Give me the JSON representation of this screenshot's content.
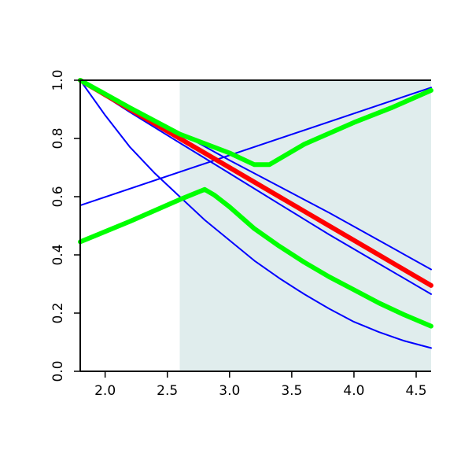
{
  "chart_data": {
    "type": "line",
    "title": "",
    "xlabel": "",
    "ylabel": "",
    "xlim": [
      1.8,
      4.62
    ],
    "ylim": [
      0.0,
      1.0
    ],
    "x_ticks": [
      2.0,
      2.5,
      3.0,
      3.5,
      4.0,
      4.5
    ],
    "x_tick_labels": [
      "2.0",
      "2.5",
      "3.0",
      "3.5",
      "4.0",
      "4.5"
    ],
    "y_ticks": [
      0.0,
      0.2,
      0.4,
      0.6,
      0.8,
      1.0
    ],
    "y_tick_labels": [
      "0.0",
      "0.2",
      "0.4",
      "0.6",
      "0.8",
      "1.0"
    ],
    "shaded_region": {
      "x": [
        2.6,
        4.62
      ],
      "color": "#e0eded"
    },
    "grid": false,
    "legend": "none",
    "series": [
      {
        "color": "#0000ff",
        "width": "thin",
        "x": [
          1.8,
          4.62
        ],
        "y": [
          0.57,
          0.975
        ]
      },
      {
        "color": "#0000ff",
        "width": "thin",
        "x": [
          1.8,
          2.2,
          2.6,
          3.0,
          3.4,
          3.8,
          4.2,
          4.62
        ],
        "y": [
          1.0,
          0.91,
          0.82,
          0.725,
          0.635,
          0.545,
          0.45,
          0.35
        ]
      },
      {
        "color": "#0000ff",
        "width": "thin",
        "x": [
          1.8,
          2.2,
          2.6,
          3.0,
          3.4,
          3.8,
          4.2,
          4.62
        ],
        "y": [
          1.0,
          0.89,
          0.785,
          0.68,
          0.575,
          0.47,
          0.37,
          0.265
        ]
      },
      {
        "color": "#0000ff",
        "width": "thin",
        "x": [
          1.8,
          2.0,
          2.2,
          2.4,
          2.6,
          2.8,
          3.0,
          3.2,
          3.4,
          3.6,
          3.8,
          4.0,
          4.2,
          4.4,
          4.62
        ],
        "y": [
          1.0,
          0.88,
          0.77,
          0.68,
          0.6,
          0.52,
          0.45,
          0.38,
          0.32,
          0.265,
          0.215,
          0.17,
          0.135,
          0.105,
          0.08
        ]
      },
      {
        "color": "#ff0000",
        "width": "thick",
        "x": [
          1.8,
          2.2,
          2.6,
          3.0,
          3.4,
          3.8,
          4.2,
          4.62
        ],
        "y": [
          1.0,
          0.9,
          0.8,
          0.7,
          0.6,
          0.5,
          0.4,
          0.295
        ]
      },
      {
        "color": "#00ff00",
        "width": "thick",
        "x": [
          1.8,
          2.2,
          2.6,
          3.0,
          3.2,
          3.32,
          3.6,
          4.0,
          4.3,
          4.62
        ],
        "y": [
          1.0,
          0.905,
          0.815,
          0.75,
          0.71,
          0.71,
          0.78,
          0.855,
          0.905,
          0.965
        ]
      },
      {
        "color": "#00ff00",
        "width": "thick",
        "x": [
          1.8,
          2.2,
          2.6,
          2.8,
          2.88,
          3.0,
          3.2,
          3.4,
          3.6,
          3.8,
          4.0,
          4.2,
          4.4,
          4.62
        ],
        "y": [
          0.445,
          0.515,
          0.59,
          0.625,
          0.605,
          0.565,
          0.49,
          0.43,
          0.375,
          0.325,
          0.28,
          0.235,
          0.195,
          0.155
        ]
      }
    ]
  }
}
